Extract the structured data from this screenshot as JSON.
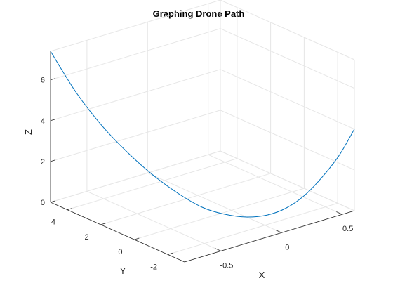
{
  "chart_data": {
    "type": "line",
    "title": "Graphing Drone Path",
    "xlabel": "X",
    "ylabel": "Y",
    "zlabel": "Z",
    "xlim": [
      -0.8,
      0.6
    ],
    "ylim": [
      -3,
      5
    ],
    "zlim": [
      0,
      7.4
    ],
    "xticks": [
      -0.5,
      0,
      0.5
    ],
    "yticks": [
      -2,
      0,
      2,
      4
    ],
    "zticks": [
      0,
      2,
      4,
      6
    ],
    "xtick_labels": [
      "-0.5",
      "0",
      "0.5"
    ],
    "ytick_labels": [
      "-2",
      "0",
      "2",
      "4"
    ],
    "ztick_labels": [
      "0",
      "2",
      "4",
      "6"
    ],
    "grid": true,
    "box": "3d",
    "series": [
      {
        "color": "#0072bd",
        "x": [
          -0.8,
          -0.7,
          -0.6,
          -0.5,
          -0.4,
          -0.3,
          -0.2,
          -0.1,
          0.0,
          0.1,
          0.2,
          0.3,
          0.4,
          0.5,
          0.6
        ],
        "y": [
          5.0,
          4.2,
          3.4,
          2.6,
          1.8,
          1.0,
          0.3,
          -0.3,
          -0.9,
          -1.4,
          -1.8,
          -2.2,
          -2.5,
          -2.8,
          -3.0
        ],
        "z": [
          7.4,
          5.5,
          4.0,
          2.8,
          1.8,
          1.0,
          0.4,
          0.1,
          0.0,
          0.1,
          0.4,
          1.0,
          1.8,
          2.8,
          4.0
        ]
      }
    ]
  }
}
